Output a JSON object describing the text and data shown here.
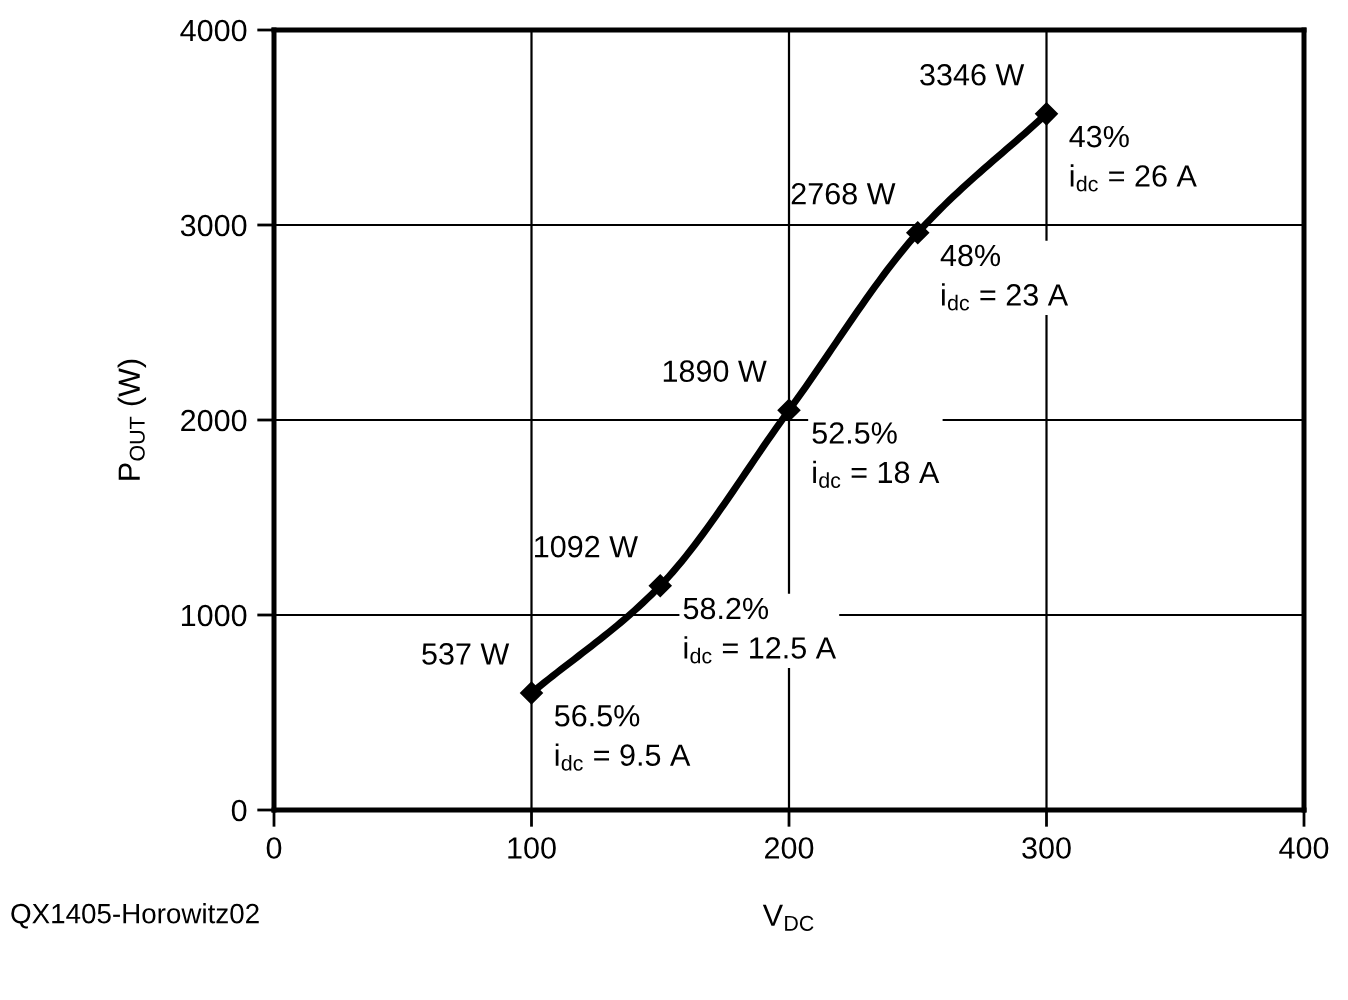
{
  "chart_data": {
    "type": "line",
    "xlabel": "V$_{DC}$",
    "ylabel": "P$_{OUT}$ (W)",
    "x": [
      100,
      150,
      200,
      250,
      300
    ],
    "series": [
      {
        "color": "#000000",
        "values": [
          600,
          1150,
          2050,
          2960,
          3570
        ]
      }
    ],
    "xlim": [
      0,
      400
    ],
    "ylim": [
      0,
      4000
    ],
    "xticks": [
      0,
      100,
      200,
      300,
      400
    ],
    "yticks": [
      0,
      1000,
      2000,
      3000,
      4000
    ],
    "grid": true,
    "marker": "diamond",
    "line_style": "solid",
    "annotations": [
      {
        "text": "537 W",
        "x": 100,
        "y": 600
      },
      {
        "text": "56.5%\ni$_{dc}$ = 9.5 A",
        "x": 100,
        "y": 600
      },
      {
        "text": "1092 W",
        "x": 150,
        "y": 1150
      },
      {
        "text": "58.2%\ni$_{dc}$ = 12.5 A",
        "x": 150,
        "y": 1150
      },
      {
        "text": "1890 W",
        "x": 200,
        "y": 2050
      },
      {
        "text": "52.5%\ni$_{dc}$ = 18 A",
        "x": 200,
        "y": 2050
      },
      {
        "text": "2768 W",
        "x": 250,
        "y": 2960
      },
      {
        "text": "48%\ni$_{dc}$ = 23 A",
        "x": 250,
        "y": 2960
      },
      {
        "text": "3346 W",
        "x": 300,
        "y": 3570
      },
      {
        "text": "43%\ni$_{dc}$ = 26 A",
        "x": 300,
        "y": 3570
      },
      "QX1405-Horowitz02"
    ]
  }
}
